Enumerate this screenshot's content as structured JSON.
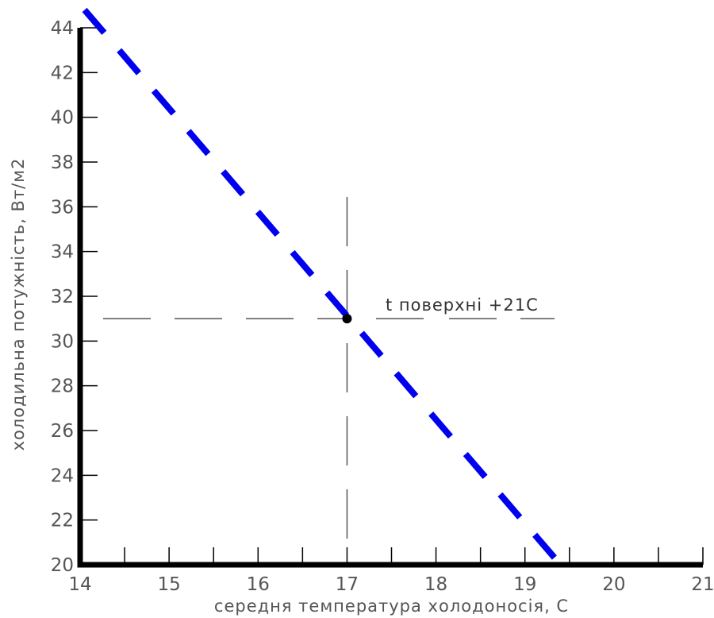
{
  "chart_data": {
    "type": "line",
    "xlabel": "середня температура холодоносія, С",
    "ylabel": "холодильна потужність, Вт/м2",
    "xlim": [
      14,
      21
    ],
    "ylim": [
      20,
      45
    ],
    "x_ticks": [
      "14",
      "15",
      "16",
      "17",
      "18",
      "19",
      "20",
      "21"
    ],
    "y_ticks": [
      "20",
      "22",
      "24",
      "26",
      "28",
      "30",
      "32",
      "34",
      "36",
      "38",
      "40",
      "42",
      "44"
    ],
    "grid": false,
    "series": [
      {
        "x": [
          14.05,
          19.4
        ],
        "y": [
          44.8,
          20
        ],
        "color": "#0000ee",
        "line_style": "dashed"
      }
    ],
    "marker": {
      "x": 17,
      "y": 31
    },
    "reference_lines": {
      "vertical_x": 17,
      "horizontal_y": 31,
      "style": "dashed"
    },
    "annotation": "t поверхні +21С"
  }
}
